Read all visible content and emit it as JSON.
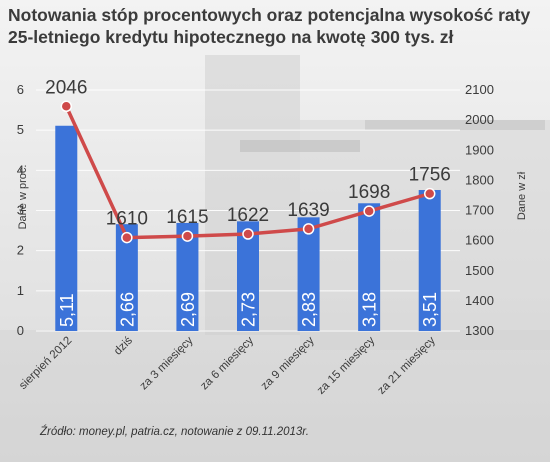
{
  "title": "Notowania stóp procentowych oraz potencjalna wysokość raty 25-letniego kredytu hipotecznego na kwotę 300 tys. zł",
  "source": "Źródło: money.pl, patria.cz, notowanie z 09.11.2013r.",
  "colors": {
    "bar": "#3b73d9",
    "line": "#cf4a4a",
    "text": "#3b3b3b",
    "grid": "#ffffff"
  },
  "chart_data": {
    "type": "bar+line",
    "categories": [
      "sierpień 2012",
      "dziś",
      "za 3 miesięcy",
      "za 6 miesięcy",
      "za 9 miesięcy",
      "za 15 miesięcy",
      "za 21 miesięcy"
    ],
    "series": [
      {
        "type": "bar",
        "axis": "left",
        "values": [
          5.11,
          2.66,
          2.69,
          2.73,
          2.83,
          3.18,
          3.51
        ],
        "labels": [
          "5,11",
          "2,66",
          "2,69",
          "2,73",
          "2,83",
          "3,18",
          "3,51"
        ]
      },
      {
        "type": "line",
        "axis": "right",
        "values": [
          2046,
          1610,
          1615,
          1622,
          1639,
          1698,
          1756
        ],
        "labels": [
          "2046",
          "1610",
          "1615",
          "1622",
          "1639",
          "1698",
          "1756"
        ]
      }
    ],
    "y_left": {
      "label": "Dane w proc.",
      "min": 0,
      "max": 6,
      "ticks": [
        "0",
        "1",
        "2",
        "3",
        "4",
        "5",
        "6"
      ]
    },
    "y_right": {
      "label": "Dane w zł",
      "min": 1300,
      "max": 2100,
      "ticks": [
        "1300",
        "1400",
        "1500",
        "1600",
        "1700",
        "1800",
        "1900",
        "2000",
        "2100"
      ]
    },
    "grid": true
  }
}
